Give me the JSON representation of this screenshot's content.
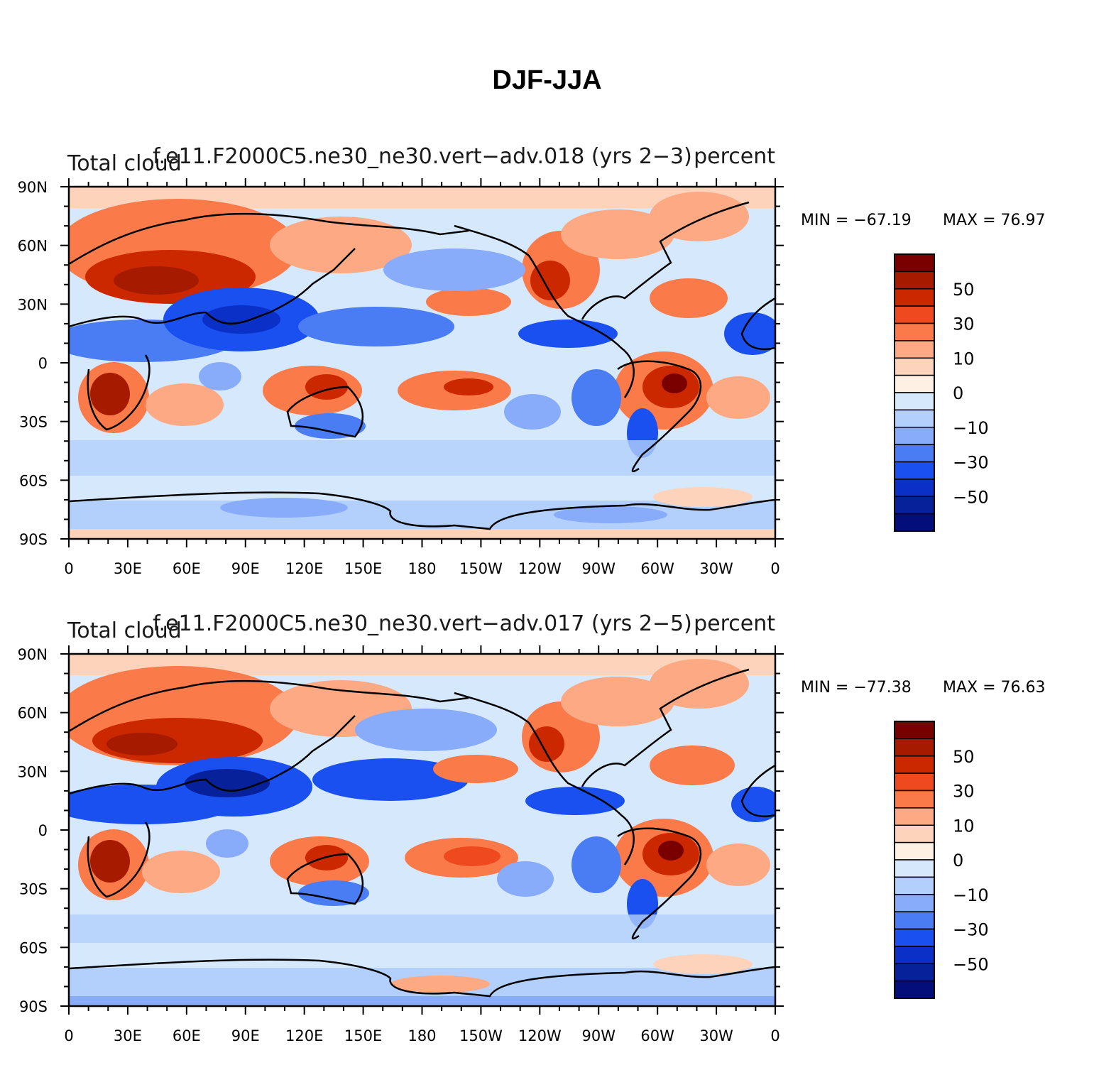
{
  "figure_title": "DJF-JJA",
  "x_tick_labels": [
    "0",
    "30E",
    "60E",
    "90E",
    "120E",
    "150E",
    "180",
    "150W",
    "120W",
    "90W",
    "60W",
    "30W",
    "0"
  ],
  "y_tick_labels": [
    "90N",
    "60N",
    "30N",
    "0",
    "30S",
    "60S",
    "90S"
  ],
  "colorbar_levels": [
    "50",
    "30",
    "10",
    "0",
    "−10",
    "−30",
    "−50"
  ],
  "colorbar_colors": [
    "#7a0000",
    "#a61b00",
    "#cc2800",
    "#ef4a1f",
    "#fb7a4a",
    "#fdaa84",
    "#fdd3bb",
    "#fff0e4",
    "#d6e8fc",
    "#b3cffb",
    "#88abfa",
    "#4a7df4",
    "#1a4ff0",
    "#0a30c8",
    "#062199",
    "#040e7a"
  ],
  "panels": [
    {
      "id": "top",
      "variable": "Total cloud",
      "case": "f.e11.F2000C5.ne30_ne30.vert−adv.018 (yrs 2−3)",
      "units": "percent",
      "min_text": "MIN = −67.19",
      "max_text": "MAX =  76.97",
      "min": -67.19,
      "max": 76.97
    },
    {
      "id": "bottom",
      "variable": "Total cloud",
      "case": "f.e11.F2000C5.ne30_ne30.vert−adv.017 (yrs 2−5)",
      "units": "percent",
      "min_text": "MIN = −77.38",
      "max_text": "MAX =  76.63",
      "min": -77.38,
      "max": 76.63
    }
  ]
}
